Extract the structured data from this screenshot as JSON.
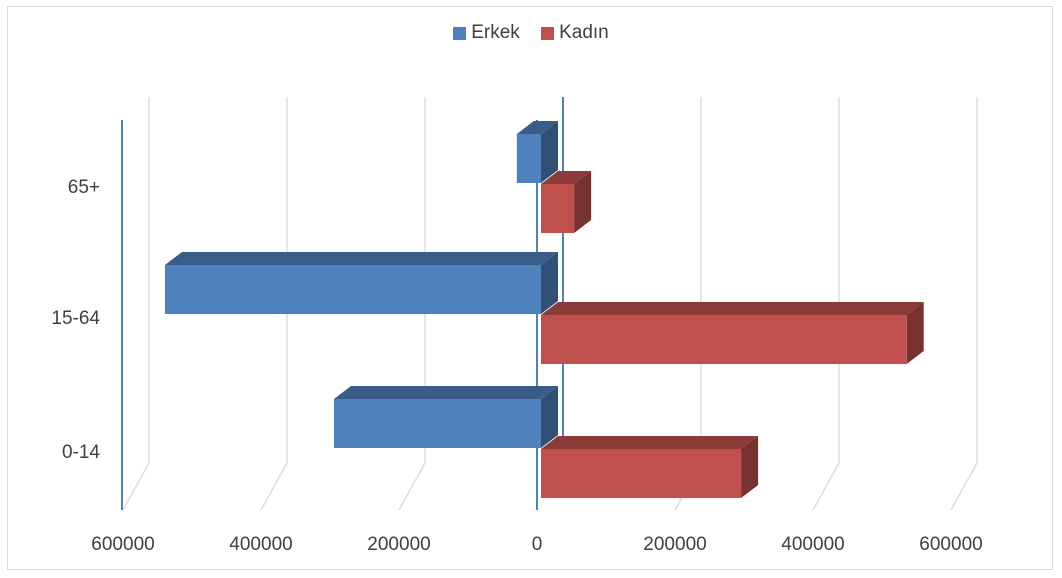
{
  "chart_data": {
    "type": "bar",
    "orientation": "horizontal",
    "style": "3d-population-pyramid",
    "categories": [
      "0-14",
      "15-64",
      "65+"
    ],
    "series": [
      {
        "name": "Erkek",
        "color": "#4f81bd",
        "values": [
          -300000,
          -545000,
          -35000
        ]
      },
      {
        "name": "Kadın",
        "color": "#c0504d",
        "values": [
          290000,
          530000,
          48000
        ]
      }
    ],
    "x_ticks": [
      -600000,
      -400000,
      -200000,
      0,
      200000,
      400000,
      600000
    ],
    "x_tick_labels": [
      "600000",
      "400000",
      "200000",
      "0",
      "200000",
      "400000",
      "600000"
    ],
    "xlim": [
      -600000,
      600000
    ],
    "grid": true,
    "legend_position": "top"
  }
}
